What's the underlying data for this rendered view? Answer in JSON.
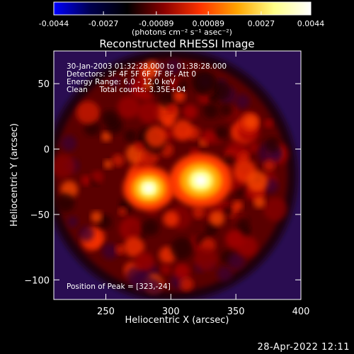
{
  "chart_data": {
    "type": "heatmap",
    "title": "Reconstructed RHESSI Image",
    "xlabel": "Heliocentric X (arcsec)",
    "ylabel": "Heliocentric Y (arcsec)",
    "xlim": [
      210,
      400
    ],
    "ylim": [
      -115,
      75
    ],
    "x_ticks": [
      250,
      300,
      350,
      400
    ],
    "y_ticks": [
      50,
      0,
      -50,
      -100
    ],
    "colorbar": {
      "ticks": [
        "-0.0044",
        "-0.0027",
        "-0.00089",
        "0.00089",
        "0.0027",
        "0.0044"
      ],
      "range": [
        -0.0044,
        0.0044
      ],
      "unit": "(photons cm⁻² s⁻¹ asec⁻²)",
      "gradient": [
        "#0000ff",
        "#00004d",
        "#000000",
        "#8a0000",
        "#ff3300",
        "#ffa500",
        "#ffff88",
        "#ffffff"
      ]
    },
    "annotations": [
      "30-Jan-2003 01:32:28.000 to 01:38:28.000",
      "Detectors: 3F 4F 5F 6F 7F 8F, Att 0",
      "Energy Range: 6.0 - 12.0 keV",
      "Clean     Total counts: 3.35E+04"
    ],
    "peak_label": "Position of Peak = [323,-24]",
    "peak": [
      323,
      -24
    ],
    "sources": [
      {
        "x": 323,
        "y": -24,
        "intensity": 0.0044
      },
      {
        "x": 283,
        "y": -30,
        "intensity": 0.0036
      }
    ],
    "disk_center": [
      300,
      -20
    ]
  },
  "footer": {
    "date": "28-Apr-2022 12:11"
  }
}
